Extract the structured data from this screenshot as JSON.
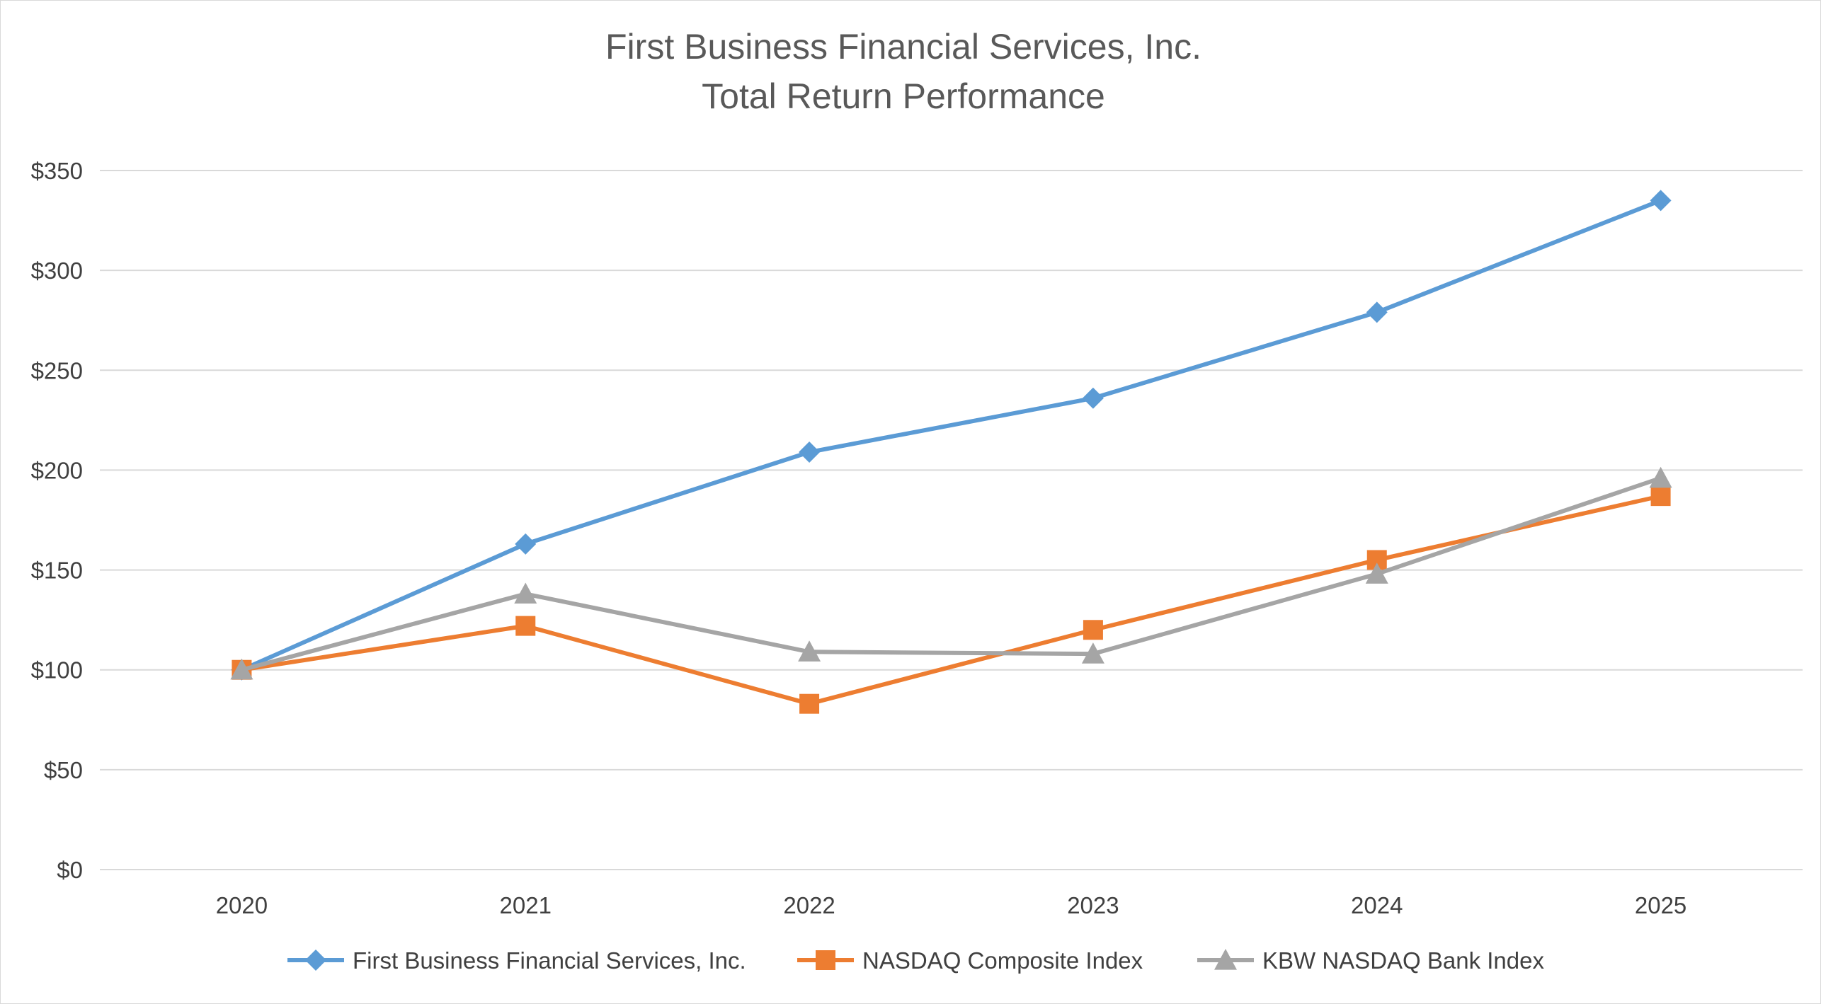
{
  "chart_data": {
    "type": "line",
    "title": "First Business Financial Services, Inc.",
    "subtitle": "Total Return Performance",
    "xlabel": "",
    "ylabel": "",
    "categories": [
      "2020",
      "2021",
      "2022",
      "2023",
      "2024",
      "2025"
    ],
    "ylim": [
      0,
      350
    ],
    "yticks": [
      0,
      50,
      100,
      150,
      200,
      250,
      300,
      350
    ],
    "ytick_labels": [
      "$0",
      "$50",
      "$100",
      "$150",
      "$200",
      "$250",
      "$300",
      "$350"
    ],
    "grid": true,
    "legend_position": "bottom",
    "series": [
      {
        "name": "First Business Financial Services, Inc.",
        "values": [
          100,
          163,
          209,
          236,
          279,
          335
        ],
        "color": "#5B9BD5",
        "marker": "diamond"
      },
      {
        "name": "NASDAQ Composite Index",
        "values": [
          100,
          122,
          83,
          120,
          155,
          187
        ],
        "color": "#ED7D31",
        "marker": "square"
      },
      {
        "name": "KBW NASDAQ Bank Index",
        "values": [
          100,
          138,
          109,
          108,
          148,
          196
        ],
        "color": "#A5A5A5",
        "marker": "triangle"
      }
    ]
  }
}
